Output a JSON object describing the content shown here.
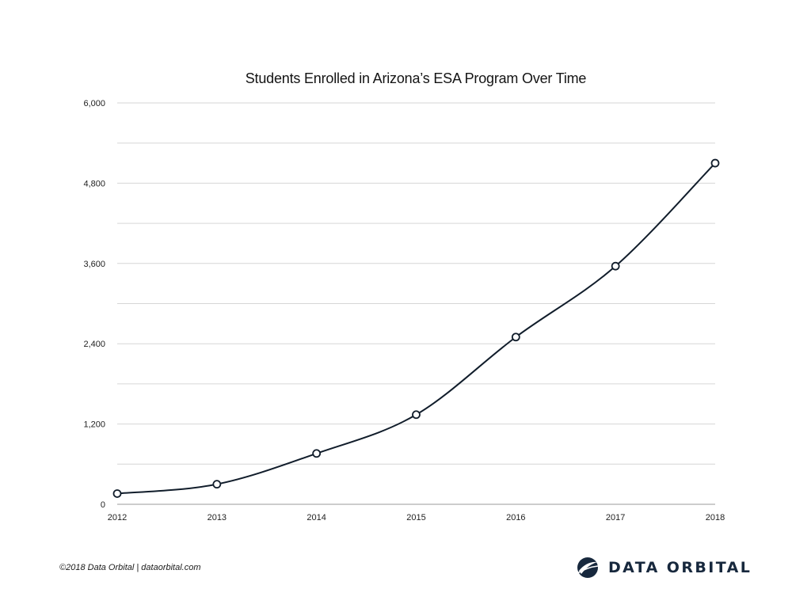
{
  "chart_data": {
    "type": "line",
    "title": "Students Enrolled in Arizona’s ESA Program Over Time",
    "xlabel": "",
    "ylabel": "",
    "categories": [
      "2012",
      "2013",
      "2014",
      "2015",
      "2016",
      "2017",
      "2018"
    ],
    "values": [
      160,
      300,
      760,
      1340,
      2500,
      3560,
      5100
    ],
    "ylim": [
      0,
      6000
    ],
    "yticks": [
      0,
      1200,
      2400,
      3600,
      4800,
      6000
    ],
    "ytick_labels": [
      "0",
      "1,200",
      "2,400",
      "3,600",
      "4,800",
      "6,000"
    ],
    "minor_gridlines": [
      600,
      1800,
      3000,
      4200,
      5400
    ],
    "grid": true,
    "legend": "none",
    "line_color": "#111d2b",
    "marker_fill": "#ffffff",
    "grid_color": "#d6d6d6"
  },
  "footer": {
    "credit": "©2018 Data Orbital | dataorbital.com"
  },
  "logo": {
    "text": "DATA ORBITAL",
    "color": "#17283d",
    "icon": "orbital-globe-icon"
  }
}
